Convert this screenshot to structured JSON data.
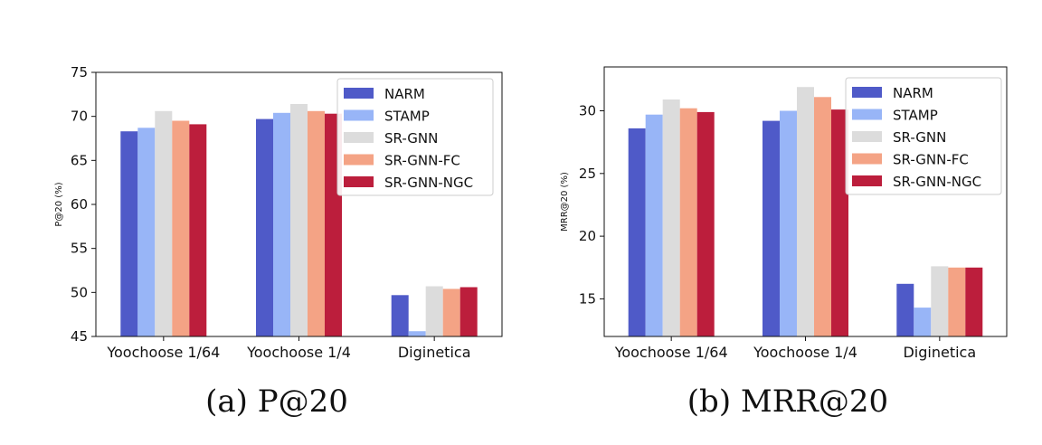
{
  "colors": {
    "NARM": "#4f5ac8",
    "STAMP": "#98b5f7",
    "SR-GNN": "#dcdcdc",
    "SR-GNN-FC": "#f4a385",
    "SR-GNN-NGC": "#bc1e3c"
  },
  "chart_data": [
    {
      "type": "bar",
      "caption": "(a) P@20",
      "ylabel": "P@20 (%)",
      "ylim": [
        45,
        75
      ],
      "yticks": [
        "45",
        "50",
        "55",
        "60",
        "65",
        "70",
        "75"
      ],
      "categories": [
        "Yoochoose 1/64",
        "Yoochoose 1/4",
        "Diginetica"
      ],
      "legend_position": "top-right",
      "series": [
        {
          "name": "NARM",
          "values": [
            68.3,
            69.7,
            49.7
          ]
        },
        {
          "name": "STAMP",
          "values": [
            68.7,
            70.4,
            45.6
          ]
        },
        {
          "name": "SR-GNN",
          "values": [
            70.6,
            71.4,
            50.7
          ]
        },
        {
          "name": "SR-GNN-FC",
          "values": [
            69.5,
            70.6,
            50.4
          ]
        },
        {
          "name": "SR-GNN-NGC",
          "values": [
            69.1,
            70.3,
            50.6
          ]
        }
      ]
    },
    {
      "type": "bar",
      "caption": "(b) MRR@20",
      "ylabel": "MRR@20 (%)",
      "ylim": [
        12,
        33.5
      ],
      "yticks": [
        "15",
        "20",
        "25",
        "30"
      ],
      "categories": [
        "Yoochoose 1/64",
        "Yoochoose 1/4",
        "Diginetica"
      ],
      "legend_position": "top-right",
      "series": [
        {
          "name": "NARM",
          "values": [
            28.6,
            29.2,
            16.2
          ]
        },
        {
          "name": "STAMP",
          "values": [
            29.7,
            30.0,
            14.3
          ]
        },
        {
          "name": "SR-GNN",
          "values": [
            30.9,
            31.9,
            17.6
          ]
        },
        {
          "name": "SR-GNN-FC",
          "values": [
            30.2,
            31.1,
            17.5
          ]
        },
        {
          "name": "SR-GNN-NGC",
          "values": [
            29.9,
            30.1,
            17.5
          ]
        }
      ]
    }
  ]
}
